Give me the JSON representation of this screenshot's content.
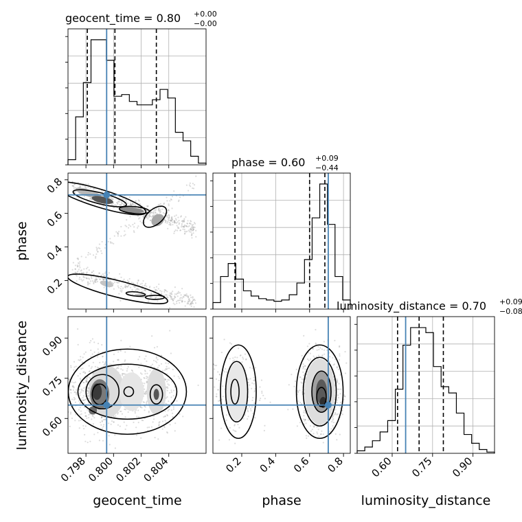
{
  "chart_data": {
    "type": "corner",
    "parameters": [
      "geocent_time",
      "phase",
      "luminosity_distance"
    ],
    "truths": {
      "geocent_time": 0.7995,
      "phase": 0.71,
      "luminosity_distance": 0.65
    },
    "titles": [
      {
        "param": "geocent_time",
        "main": "geocent_time = 0.80",
        "sup": "+0.00",
        "sub": "−0.00"
      },
      {
        "param": "phase",
        "main": "phase = 0.60",
        "sup": "+0.09",
        "sub": "−0.44"
      },
      {
        "param": "luminosity_distance",
        "main": "luminosity_distance = 0.70",
        "sup": "+0.09",
        "sub": "−0.08"
      }
    ],
    "ranges": {
      "geocent_time": [
        0.7967,
        0.8067
      ],
      "phase": [
        0.03,
        0.84
      ],
      "luminosity_distance": [
        0.47,
        0.98
      ]
    },
    "ticks": {
      "geocent_time": {
        "values": [
          0.798,
          0.8,
          0.802,
          0.804
        ],
        "labels": [
          "0.798",
          "0.800",
          "0.802",
          "0.804"
        ]
      },
      "phase": {
        "values": [
          0.2,
          0.4,
          0.6,
          0.8
        ],
        "labels": [
          "0.2",
          "0.4",
          "0.6",
          "0.8"
        ]
      },
      "luminosity_distance": {
        "values": [
          0.6,
          0.75,
          0.9
        ],
        "labels": [
          "0.60",
          "0.75",
          "0.90"
        ]
      }
    },
    "histograms": {
      "geocent_time": {
        "quantiles": [
          0.7981,
          0.8001,
          0.8031
        ],
        "counts": [
          3,
          28,
          48,
          73,
          73,
          61,
          40,
          41,
          37,
          35,
          35,
          38,
          44,
          39,
          19,
          14,
          5,
          1
        ]
      },
      "phase": {
        "quantiles": [
          0.16,
          0.6,
          0.69
        ],
        "counts": [
          5,
          25,
          35,
          23,
          14,
          10,
          8,
          7,
          6,
          7,
          11,
          20,
          38,
          70,
          96,
          65,
          25,
          7
        ]
      },
      "luminosity_distance": {
        "quantiles": [
          0.62,
          0.7,
          0.79
        ],
        "counts": [
          2,
          5,
          10,
          17,
          26,
          51,
          86,
          100,
          100,
          96,
          69,
          53,
          48,
          32,
          15,
          8,
          3,
          1
        ]
      }
    },
    "scatter_grid": true,
    "axis_labels": {
      "x": [
        "geocent_time",
        "phase",
        "luminosity_distance"
      ],
      "y": [
        "phase",
        "luminosity_distance"
      ]
    }
  }
}
